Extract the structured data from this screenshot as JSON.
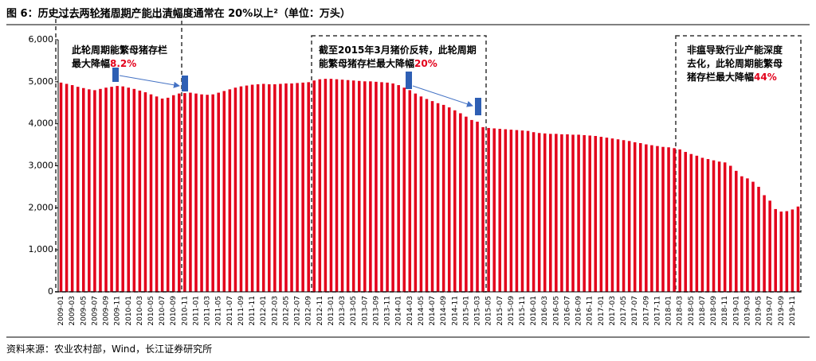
{
  "chart_data": {
    "type": "bar",
    "title": "图 6：历史过去两轮猪周期产能出清幅度通常在 20%以上²（单位：万头）",
    "source": "资料来源：农业农村部，Wind，长江证券研究所",
    "annotations": [
      {
        "text": "此轮周期能繁母猪存栏最大降幅",
        "highlight": "8.2%"
      },
      {
        "text": "截至2015年3月猪价反转，此轮周期能繁母猪存栏最大降幅",
        "highlight": "20%"
      },
      {
        "text": "非瘟导致行业产能深度去化，此轮周期能繁母猪存栏最大降幅",
        "highlight": "44%"
      }
    ],
    "color": "#e3001b",
    "ylim": [
      0,
      6000
    ],
    "yticks": [
      0,
      {
        "value": 1000,
        "label": "1,000"
      },
      {
        "value": 2000,
        "label": "2,000"
      },
      {
        "value": 3000,
        "label": "3,000"
      },
      {
        "value": 4000,
        "label": "4,000"
      },
      {
        "value": 5000,
        "label": "5,000"
      },
      {
        "value": 6000,
        "label": "6,000"
      }
    ],
    "categories": [
      "2009-01",
      null,
      "2009-03",
      null,
      "2009-05",
      null,
      "2009-07",
      null,
      "2009-09",
      null,
      "2009-11",
      null,
      "2010-01",
      null,
      "2010-03",
      null,
      "2010-05",
      null,
      "2010-07",
      null,
      "2010-09",
      null,
      "2010-11",
      null,
      "2011-01",
      null,
      "2011-03",
      null,
      "2011-05",
      null,
      "2011-07",
      null,
      "2011-09",
      null,
      "2011-11",
      null,
      "2012-01",
      null,
      "2012-03",
      null,
      "2012-05",
      null,
      "2012-07",
      null,
      "2012-09",
      null,
      "2012-11",
      null,
      "2013-01",
      null,
      "2013-03",
      null,
      "2013-05",
      null,
      "2013-07",
      null,
      "2013-09",
      null,
      "2013-11",
      null,
      "2014-01",
      null,
      "2014-03",
      null,
      "2014-05",
      null,
      "2014-07",
      null,
      "2014-09",
      null,
      "2014-11",
      null,
      "2015-01",
      null,
      "2015-03",
      null,
      "2015-05",
      null,
      "2015-07",
      null,
      "2015-09",
      null,
      "2015-11",
      null,
      "2016-01",
      null,
      "2016-03",
      null,
      "2016-05",
      null,
      "2016-07",
      null,
      "2016-09",
      null,
      "2016-11",
      null,
      "2017-01",
      null,
      "2017-03",
      null,
      "2017-05",
      null,
      "2017-07",
      null,
      "2017-09",
      null,
      "2017-11",
      null,
      "2018-01",
      null,
      "2018-03",
      null,
      "2018-05",
      null,
      "2018-07",
      null,
      "2018-09",
      null,
      "2018-11",
      null,
      "2019-01",
      null,
      "2019-03",
      null,
      "2019-05",
      null,
      "2019-07",
      null,
      "2019-09",
      null,
      "2019-11",
      null
    ],
    "values": [
      4980,
      4950,
      4920,
      4880,
      4850,
      4820,
      4800,
      4830,
      4860,
      4880,
      4900,
      4890,
      4860,
      4830,
      4790,
      4750,
      4700,
      4650,
      4600,
      4620,
      4680,
      4720,
      4730,
      4740,
      4720,
      4700,
      4690,
      4700,
      4740,
      4780,
      4820,
      4860,
      4890,
      4910,
      4930,
      4940,
      4950,
      4940,
      4940,
      4950,
      4960,
      4960,
      4970,
      4980,
      4990,
      5030,
      5060,
      5070,
      5070,
      5060,
      5050,
      5040,
      5030,
      5020,
      5010,
      5010,
      5000,
      4990,
      4980,
      4960,
      4920,
      4860,
      4800,
      4720,
      4650,
      4590,
      4540,
      4490,
      4450,
      4390,
      4320,
      4250,
      4170,
      4090,
      4050,
      3920,
      3900,
      3890,
      3880,
      3870,
      3860,
      3850,
      3840,
      3830,
      3800,
      3780,
      3770,
      3760,
      3760,
      3750,
      3750,
      3740,
      3740,
      3730,
      3720,
      3710,
      3690,
      3670,
      3650,
      3630,
      3610,
      3590,
      3560,
      3540,
      3510,
      3490,
      3470,
      3450,
      3440,
      3420,
      3390,
      3330,
      3280,
      3240,
      3190,
      3160,
      3130,
      3100,
      3080,
      3000,
      2880,
      2750,
      2700,
      2620,
      2500,
      2300,
      2170,
      1970,
      1910,
      1920,
      1960,
      2030
    ]
  }
}
